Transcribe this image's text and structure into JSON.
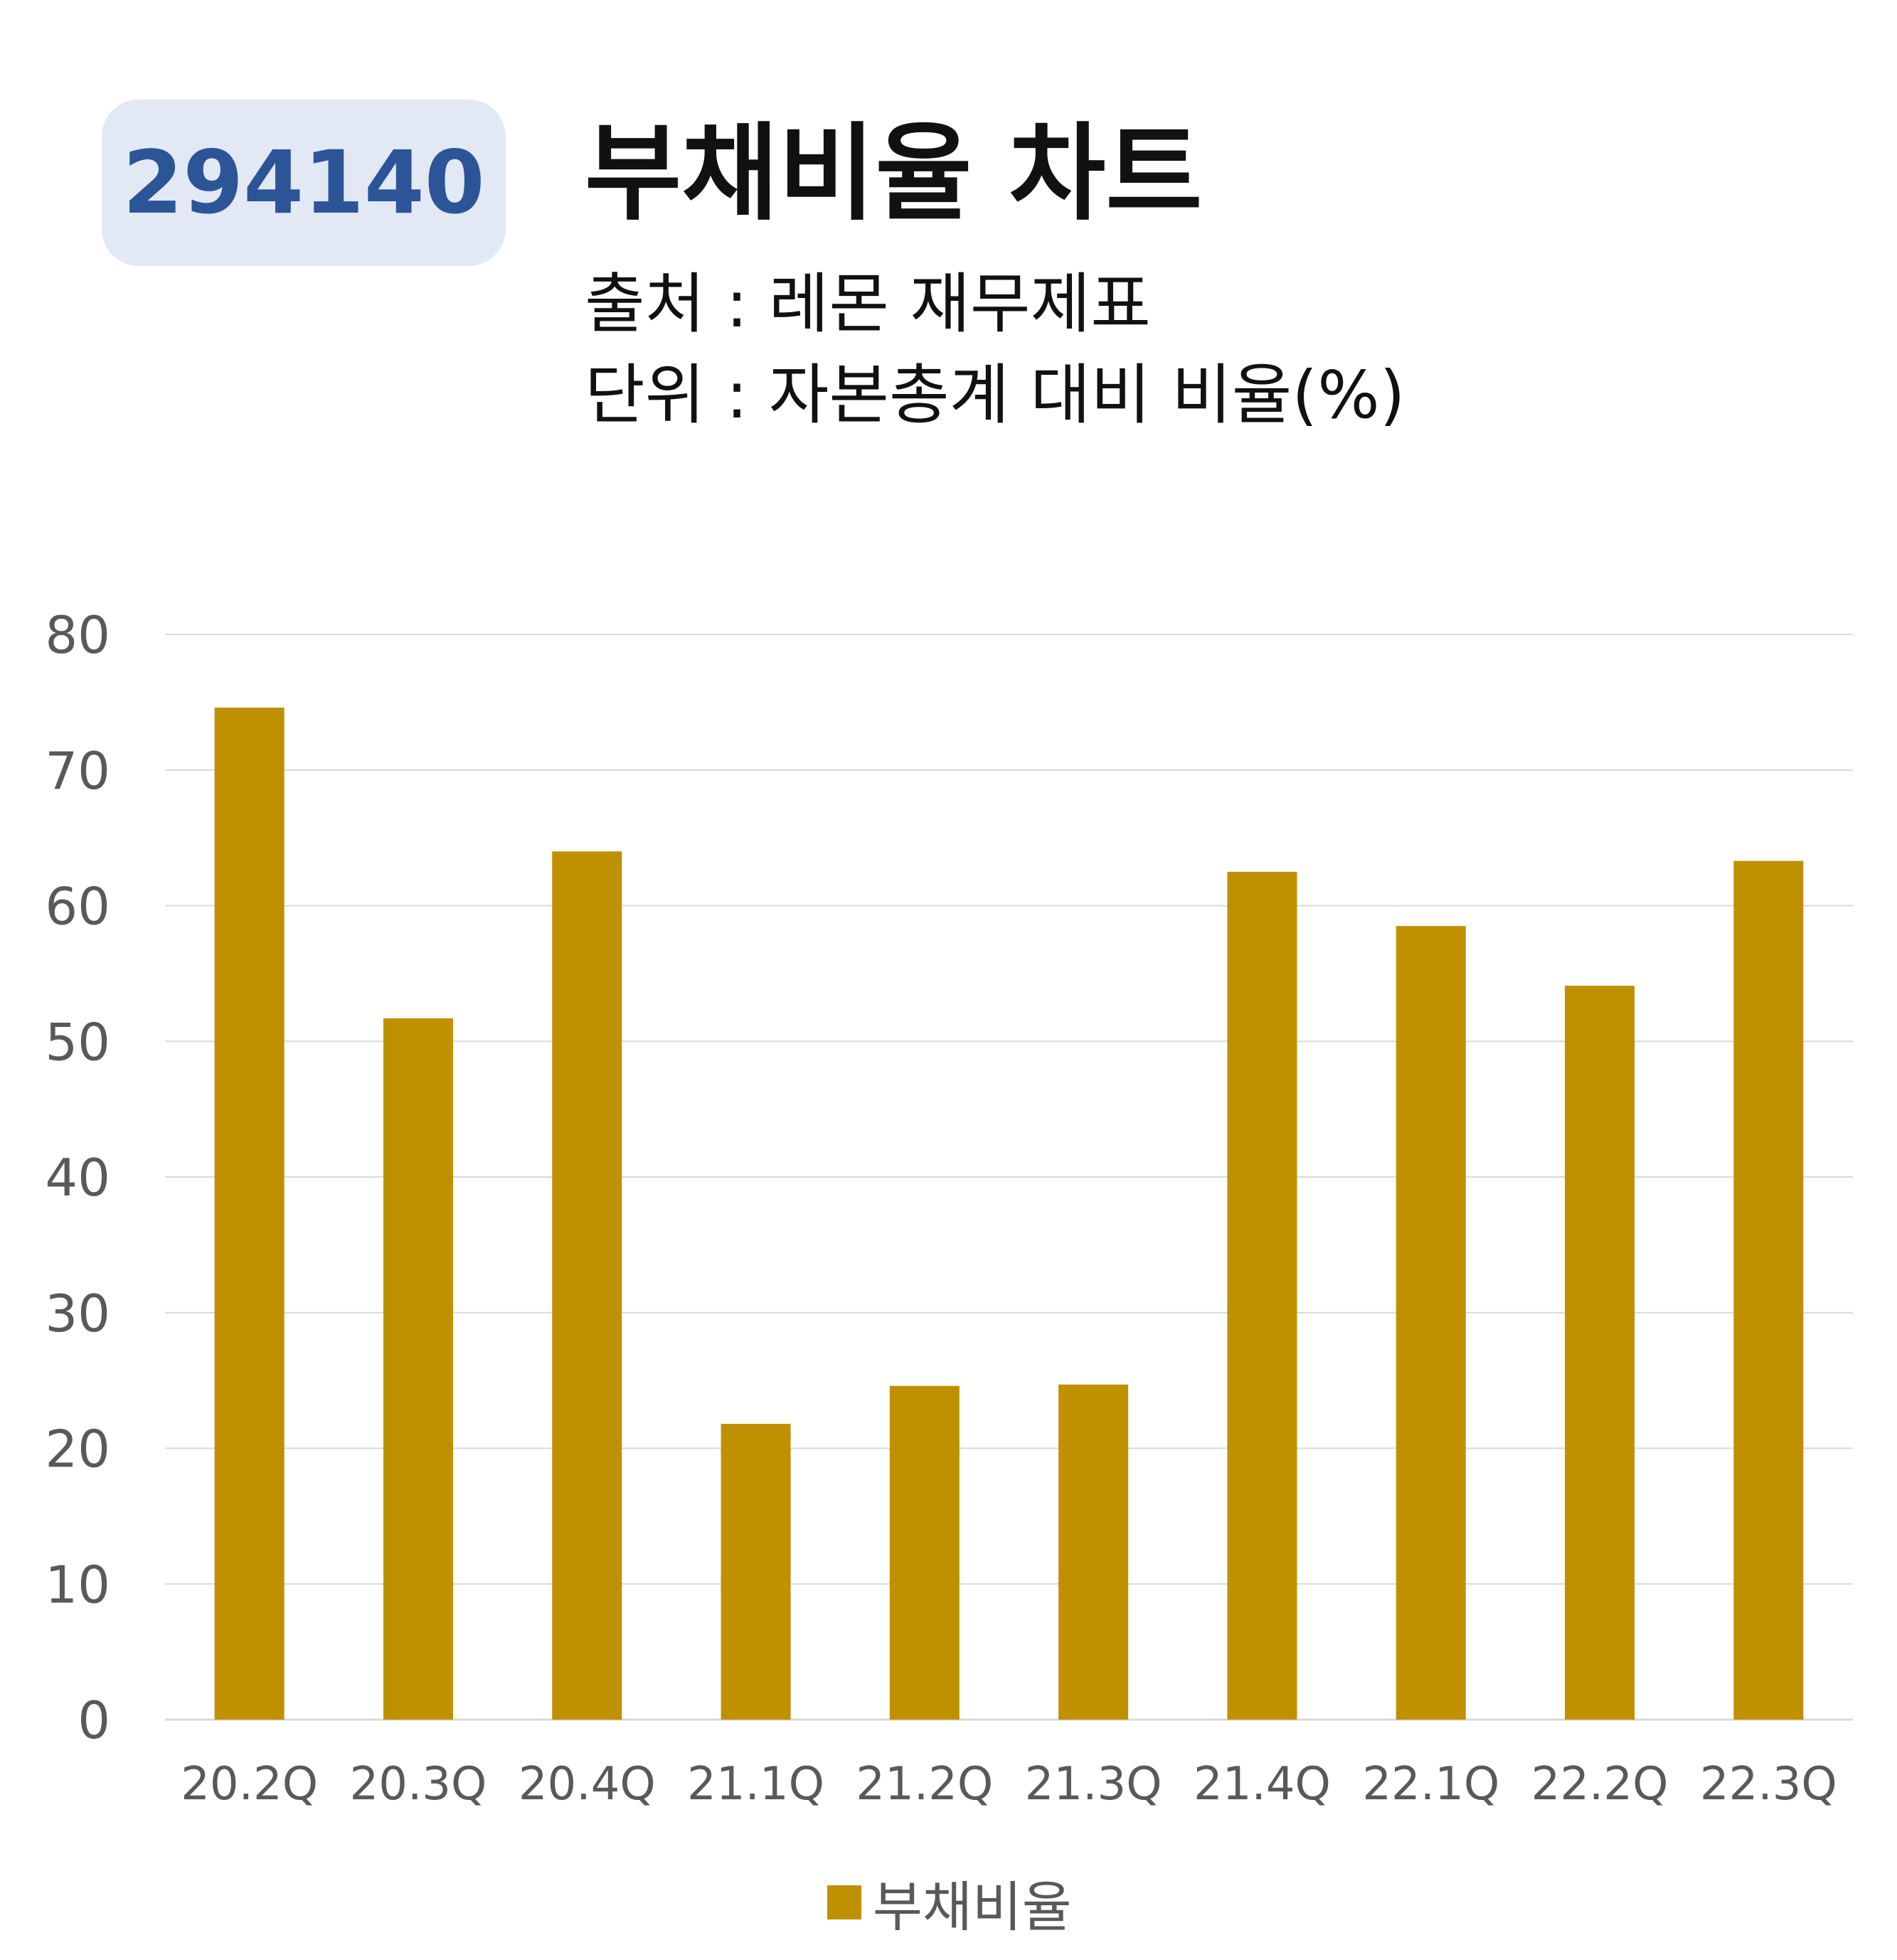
{
  "header": {
    "code": "294140",
    "title": "부채비율 차트",
    "source": "출처 : 레몬 재무제표",
    "unit": "단위 : 자본총계 대비 비율(%)"
  },
  "colors": {
    "bar": "#bf9000",
    "badge_bg": "#e2e8f4",
    "badge_text": "#2c5597",
    "grid": "#d9d9d9",
    "axis_text": "#595959"
  },
  "chart_data": {
    "type": "bar",
    "title": "",
    "xlabel": "",
    "ylabel": "",
    "categories": [
      "20.2Q",
      "20.3Q",
      "20.4Q",
      "21.1Q",
      "21.2Q",
      "21.3Q",
      "21.4Q",
      "22.1Q",
      "22.2Q",
      "22.3Q"
    ],
    "series": [
      {
        "name": "부채비율",
        "values": [
          74.6,
          51.7,
          64.0,
          21.8,
          24.6,
          24.7,
          62.5,
          58.5,
          54.1,
          63.3
        ]
      }
    ],
    "ylim": [
      0,
      80
    ],
    "yticks": [
      0,
      10,
      20,
      30,
      40,
      50,
      60,
      70,
      80
    ],
    "grid": true,
    "legend_position": "bottom"
  }
}
